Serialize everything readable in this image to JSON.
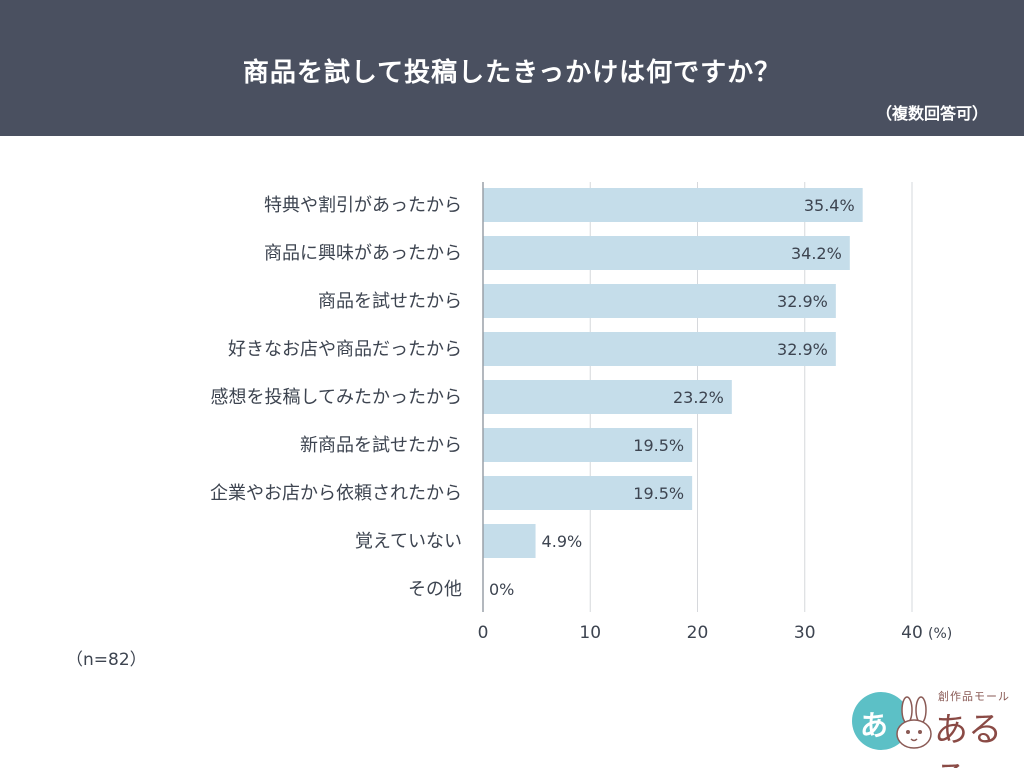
{
  "header": {
    "title": "商品を試して投稿したきっかけは何ですか？",
    "note": "（複数回答可）"
  },
  "sample": "（n=82）",
  "chart_data": {
    "type": "bar",
    "orientation": "horizontal",
    "title": "商品を試して投稿したきっかけは何ですか？",
    "categories": [
      "特典や割引があったから",
      "商品に興味があったから",
      "商品を試せたから",
      "好きなお店や商品だったから",
      "感想を投稿してみたかったから",
      "新商品を試せたから",
      "企業やお店から依頼されたから",
      "覚えていない",
      "その他"
    ],
    "values": [
      35.4,
      34.2,
      32.9,
      32.9,
      23.2,
      19.5,
      19.5,
      4.9,
      0
    ],
    "value_labels": [
      "35.4%",
      "34.2%",
      "32.9%",
      "32.9%",
      "23.2%",
      "19.5%",
      "19.5%",
      "4.9%",
      "0%"
    ],
    "xlim": [
      0,
      40
    ],
    "x_ticks": [
      "0",
      "10",
      "20",
      "30",
      "40"
    ],
    "x_unit": "(%)",
    "grid": true,
    "bar_color": "#c5ddea"
  },
  "logo": {
    "small_text": "創作品モール",
    "main_text": "あるる",
    "circle_glyph": "あ"
  }
}
